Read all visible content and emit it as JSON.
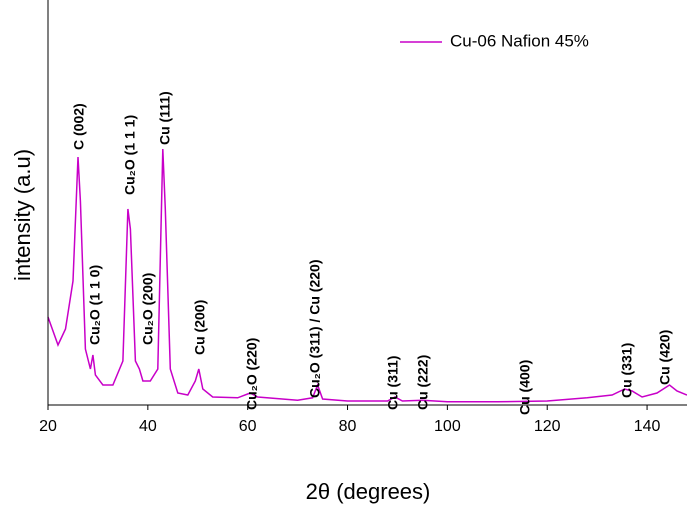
{
  "chart_data": {
    "type": "line",
    "x_label": "2θ (degrees)",
    "y_label": "intensity (a.u)",
    "xlim": [
      20,
      148
    ],
    "xticks": [
      20,
      40,
      60,
      80,
      100,
      120,
      140
    ],
    "ylim": [
      0,
      100
    ],
    "legend": "top-right",
    "series": [
      {
        "name": "Cu-06 Nafion 45%",
        "color": "#c800c8",
        "x": [
          20,
          22,
          23.5,
          25,
          26,
          26.5,
          27.5,
          28.5,
          29,
          29.5,
          31,
          33,
          35,
          36,
          36.5,
          37.5,
          38.3,
          39,
          40.5,
          42,
          43,
          43.5,
          44.5,
          46,
          48,
          49.5,
          50.2,
          51,
          53,
          58,
          60.5,
          62,
          70,
          73,
          74,
          75,
          80,
          88,
          89.5,
          91,
          95,
          100,
          110,
          120,
          128,
          133,
          135.5,
          137,
          139,
          142,
          144.5,
          146,
          148
        ],
        "values": [
          22,
          15,
          19,
          31,
          62,
          51,
          14,
          9,
          12.5,
          7.5,
          5,
          5,
          11,
          49,
          44,
          11,
          9,
          6,
          6,
          9,
          64,
          49,
          9,
          3,
          2.5,
          6,
          9,
          4,
          2,
          1.8,
          3,
          2,
          1.2,
          1.8,
          5,
          1.5,
          1,
          1,
          2,
          1,
          1.2,
          0.8,
          0.8,
          1,
          1.8,
          2.5,
          4,
          3.5,
          2,
          3,
          5,
          3.5,
          2.5
        ]
      }
    ],
    "annotations": [
      "C (002)",
      "Cu₂O (1 1 0)",
      "Cu₂O (1 1 1)",
      "Cu (111)",
      "Cu₂O (200)",
      "Cu (200)",
      "Cu₂O (220)",
      "Cu₂O (311) / Cu (220)",
      "Cu (311)",
      "Cu (222)",
      "Cu (400)",
      "Cu (331)",
      "Cu (420)"
    ]
  }
}
